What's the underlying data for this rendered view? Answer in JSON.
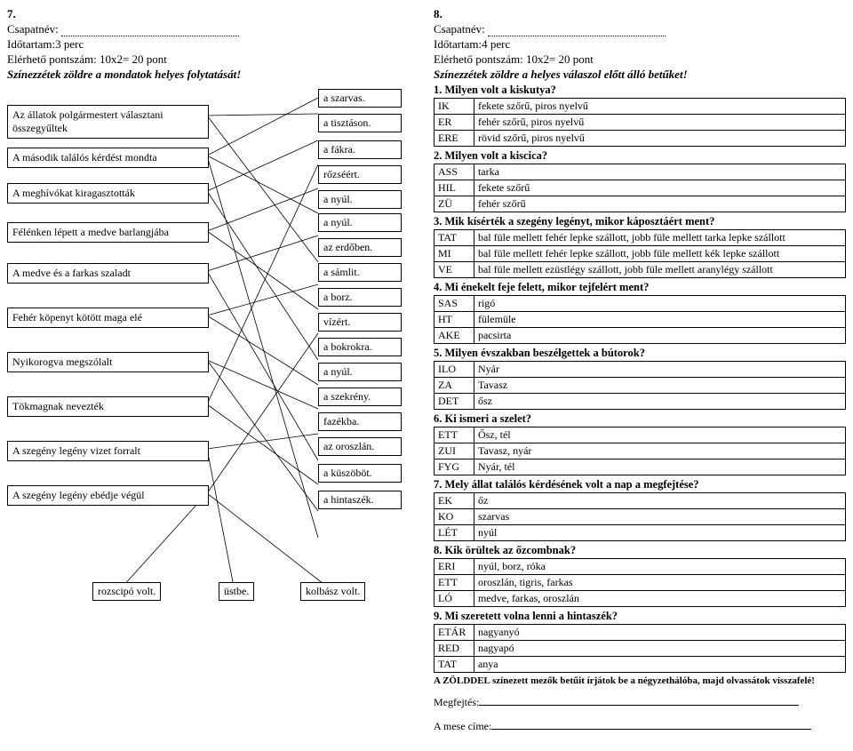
{
  "left": {
    "num": "7.",
    "team_label": "Csapatnév:",
    "duration": "Időtartam:3 perc",
    "points": "Elérhető pontszám: 10x2= 20 pont",
    "instruction": "Színezzétek zöldre a mondatok helyes folytatását!",
    "left_items": [
      "Az állatok polgármestert választani összegyűltek",
      "A második találós kérdést mondta",
      "A meghívókat kiragasztották",
      "Félénken lépett a medve barlangjába",
      "A medve és a farkas szaladt",
      "Fehér köpenyt kötött maga elé",
      "Nyikorogva megszólalt",
      "Tökmagnak nevezték",
      "A szegény legény vizet forralt",
      "A szegény legény ebédje végül"
    ],
    "right_items": [
      "a szarvas.",
      "a tisztáson.",
      "a fákra.",
      "rőzséért.",
      "a nyúl.",
      "a nyúl.",
      "az erdőben.",
      "a sámlit.",
      "a borz.",
      "vízért.",
      "a bokrokra.",
      "a nyúl.",
      "a szekrény.",
      "fazékba.",
      "az oroszlán.",
      "a küszöböt.",
      "a hintaszék."
    ],
    "bottom_items": [
      "rozscipó volt.",
      "üstbe.",
      "kolbász volt."
    ]
  },
  "right": {
    "num": "8.",
    "team_label": "Csapatnév:",
    "duration": "Időtartam:4 perc",
    "points": "Elérhető pontszám: 10x2= 20 pont",
    "instruction": "Színezzétek zöldre a helyes válaszol előtt álló betűket!",
    "questions": [
      {
        "title": "1. Milyen volt a kiskutya?",
        "rows": [
          [
            "IK",
            "fekete szőrű, piros nyelvű"
          ],
          [
            "ER",
            "fehér szőrű, piros nyelvű"
          ],
          [
            "ERE",
            "rövid szőrű, piros nyelvű"
          ]
        ]
      },
      {
        "title": "2. Milyen volt a kiscica?",
        "rows": [
          [
            "ASS",
            "tarka"
          ],
          [
            "HIL",
            "fekete szőrű"
          ],
          [
            "ZÜ",
            "fehér szőrű"
          ]
        ]
      },
      {
        "title": "3. Mik kísérték a szegény legényt, mikor káposztáért ment?",
        "rows": [
          [
            "TAT",
            "bal füle mellett fehér lepke szállott, jobb füle mellett tarka lepke szállott"
          ],
          [
            "MI",
            "bal füle mellett fehér lepke szállott, jobb füle mellett kék lepke szállott"
          ],
          [
            "VE",
            "bal füle mellett ezüstlégy szállott, jobb füle mellett aranylégy szállott"
          ]
        ]
      },
      {
        "title": "4. Mi énekelt feje felett, mikor tejfelért ment?",
        "rows": [
          [
            "SAS",
            "rigó"
          ],
          [
            "HT",
            "fülemüle"
          ],
          [
            "AKE",
            "pacsirta"
          ]
        ]
      },
      {
        "title": "5. Milyen évszakban beszélgettek a bútorok?",
        "rows": [
          [
            "ILO",
            "Nyár"
          ],
          [
            "ZA",
            "Tavasz"
          ],
          [
            "DET",
            "ősz"
          ]
        ]
      },
      {
        "title": "6. Ki ismeri a szelet?",
        "rows": [
          [
            "ETT",
            "Ősz, tél"
          ],
          [
            "ZUI",
            "Tavasz, nyár"
          ],
          [
            "FYG",
            "Nyár, tél"
          ]
        ]
      },
      {
        "title": "7. Mely állat találós kérdésének volt a nap a megfejtése?",
        "rows": [
          [
            "EK",
            "őz"
          ],
          [
            "KO",
            "szarvas"
          ],
          [
            "LÉT",
            "nyúl"
          ]
        ]
      },
      {
        "title": "8. Kik örültek az őzcombnak?",
        "rows": [
          [
            "ERI",
            "nyúl, borz, róka"
          ],
          [
            "ETT",
            "oroszlán, tigris, farkas"
          ],
          [
            "LÓ",
            "medve, farkas, oroszlán"
          ]
        ]
      },
      {
        "title": "9. Mi szeretett volna lenni a hintaszék?",
        "rows": [
          [
            "ETÁR",
            "nagyanyó"
          ],
          [
            "RED",
            "nagyapó"
          ],
          [
            "TAT",
            "anya"
          ]
        ]
      }
    ],
    "footnote": "A ZÖLDDEL színezett mezők betűit írjátok be a négyzethálóba, majd olvassátok visszafelé!",
    "solve1": "Megfejtés:",
    "solve2": "A mese címe:"
  }
}
